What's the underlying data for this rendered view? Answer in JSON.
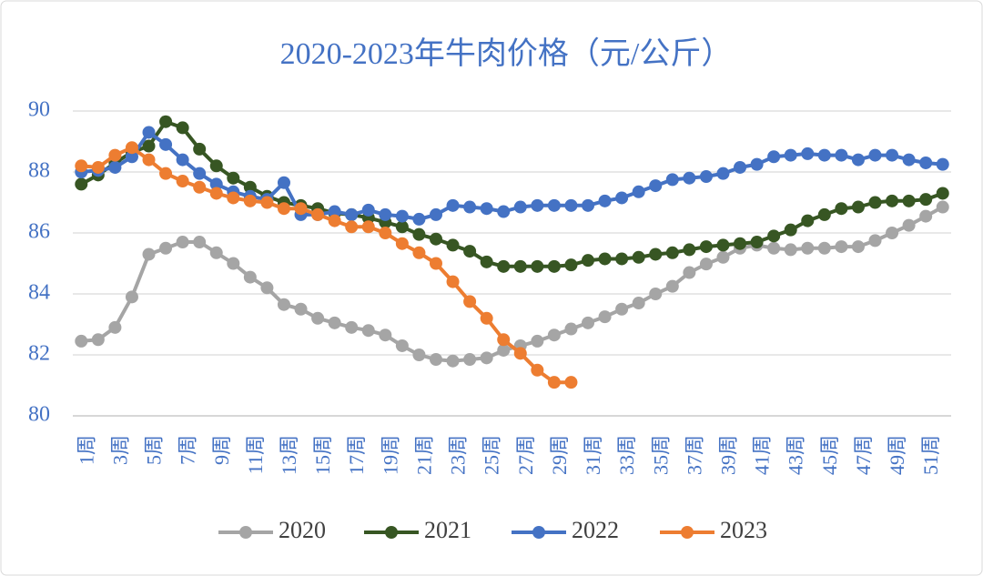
{
  "chart_data": {
    "type": "line",
    "title": "2020-2023年牛肉价格（元/公斤）",
    "categories": [
      "1周",
      null,
      "3周",
      null,
      "5周",
      null,
      "7周",
      null,
      "9周",
      null,
      "11周",
      null,
      "13周",
      null,
      "15周",
      null,
      "17周",
      null,
      "19周",
      null,
      "21周",
      null,
      "23周",
      null,
      "25周",
      null,
      "27周",
      null,
      "29周",
      null,
      "31周",
      null,
      "33周",
      null,
      "35周",
      null,
      "37周",
      null,
      "39周",
      null,
      "41周",
      null,
      "43周",
      null,
      "45周",
      null,
      "47周",
      null,
      "49周",
      null,
      "51周",
      null
    ],
    "ylim": [
      80,
      90
    ],
    "yticks": [
      80,
      82,
      84,
      86,
      88,
      90
    ],
    "grid": true,
    "legend": "bottom",
    "series": [
      {
        "name": "2020",
        "color": "#a5a5a5",
        "values": [
          82.45,
          82.5,
          82.9,
          83.9,
          85.3,
          85.5,
          85.7,
          85.7,
          85.35,
          85.0,
          84.55,
          84.2,
          83.65,
          83.5,
          83.2,
          83.05,
          82.9,
          82.8,
          82.65,
          82.3,
          82.0,
          81.85,
          81.8,
          81.85,
          81.9,
          82.15,
          82.3,
          82.45,
          82.65,
          82.85,
          83.05,
          83.25,
          83.5,
          83.7,
          84.0,
          84.25,
          84.7,
          84.98,
          85.2,
          85.5,
          85.6,
          85.5,
          85.45,
          85.5,
          85.5,
          85.55,
          85.55,
          85.75,
          86.0,
          86.25,
          86.55,
          86.85
        ]
      },
      {
        "name": "2021",
        "color": "#375623",
        "values": [
          87.6,
          87.9,
          88.3,
          88.65,
          88.85,
          89.65,
          89.45,
          88.75,
          88.2,
          87.8,
          87.5,
          87.2,
          87.0,
          86.9,
          86.8,
          86.65,
          86.6,
          86.5,
          86.35,
          86.2,
          85.95,
          85.8,
          85.6,
          85.4,
          85.05,
          84.9,
          84.9,
          84.9,
          84.9,
          84.95,
          85.1,
          85.15,
          85.15,
          85.2,
          85.3,
          85.35,
          85.45,
          85.55,
          85.6,
          85.65,
          85.7,
          85.9,
          86.1,
          86.4,
          86.6,
          86.8,
          86.85,
          87.0,
          87.05,
          87.05,
          87.1,
          87.3
        ]
      },
      {
        "name": "2022",
        "color": "#4472c4",
        "values": [
          88.0,
          88.05,
          88.15,
          88.5,
          89.3,
          88.9,
          88.4,
          87.95,
          87.6,
          87.35,
          87.2,
          87.1,
          87.65,
          86.6,
          86.6,
          86.7,
          86.6,
          86.75,
          86.6,
          86.55,
          86.45,
          86.6,
          86.9,
          86.85,
          86.8,
          86.7,
          86.85,
          86.9,
          86.9,
          86.9,
          86.9,
          87.05,
          87.15,
          87.35,
          87.55,
          87.75,
          87.8,
          87.85,
          87.95,
          88.15,
          88.25,
          88.5,
          88.55,
          88.6,
          88.55,
          88.55,
          88.4,
          88.55,
          88.55,
          88.4,
          88.3,
          88.25
        ]
      },
      {
        "name": "2023",
        "color": "#ed7d31",
        "values": [
          88.2,
          88.15,
          88.55,
          88.8,
          88.4,
          87.95,
          87.7,
          87.5,
          87.3,
          87.15,
          87.05,
          87.0,
          86.8,
          86.8,
          86.6,
          86.4,
          86.2,
          86.2,
          86.0,
          85.65,
          85.35,
          85.0,
          84.4,
          83.75,
          83.2,
          82.5,
          82.05,
          81.5,
          81.1,
          81.1,
          null,
          null,
          null,
          null,
          null,
          null,
          null,
          null,
          null,
          null,
          null,
          null,
          null,
          null,
          null,
          null,
          null,
          null,
          null,
          null,
          null,
          null
        ]
      }
    ]
  }
}
